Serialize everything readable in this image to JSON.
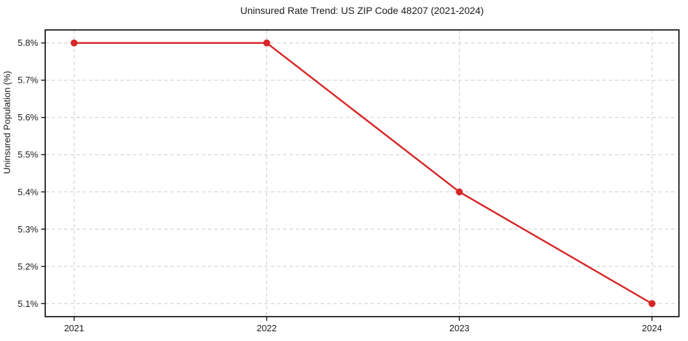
{
  "chart_data": {
    "type": "line",
    "title": "Uninsured Rate Trend: US ZIP Code 48207 (2021-2024)",
    "xlabel": "",
    "ylabel": "Uninsured Population (%)",
    "x": [
      2021,
      2022,
      2023,
      2024
    ],
    "x_labels": [
      "2021",
      "2022",
      "2023",
      "2024"
    ],
    "series": [
      {
        "name": "uninsured-rate",
        "values": [
          5.8,
          5.8,
          5.4,
          5.1
        ],
        "color": "#d62728",
        "marker": "circle",
        "line_width": 2.5,
        "marker_radius": 5
      }
    ],
    "yticks": [
      5.1,
      5.2,
      5.3,
      5.4,
      5.5,
      5.6,
      5.7,
      5.8
    ],
    "ytick_labels": [
      "5.1%",
      "5.2%",
      "5.3%",
      "5.4%",
      "5.5%",
      "5.6%",
      "5.7%",
      "5.8%"
    ],
    "ylim": [
      5.065,
      5.835
    ],
    "xlim": [
      2020.85,
      2024.14
    ],
    "grid": {
      "visible": true,
      "style": "dashed",
      "color": "#cccccc"
    },
    "legend": "none",
    "colors": {
      "background": "#ffffff",
      "spine": "#000000",
      "text": "#1a1a1a"
    }
  }
}
